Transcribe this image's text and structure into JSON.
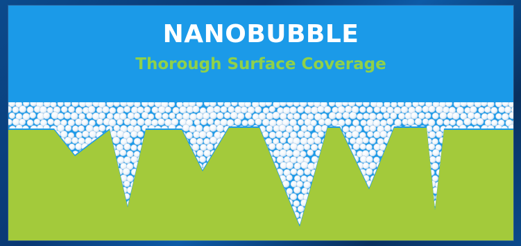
{
  "title": "NANOBUBBLE",
  "subtitle": "Thorough Surface Coverage",
  "colors": {
    "panel_blue": "#1b9ae8",
    "surface_green": "#a3ca3b",
    "subtitle_green": "#8fd14a",
    "bubble": "#ffffff",
    "frame": "#0a3f7a"
  },
  "icons": [
    "nanobubble-cluster",
    "rough-surface"
  ]
}
